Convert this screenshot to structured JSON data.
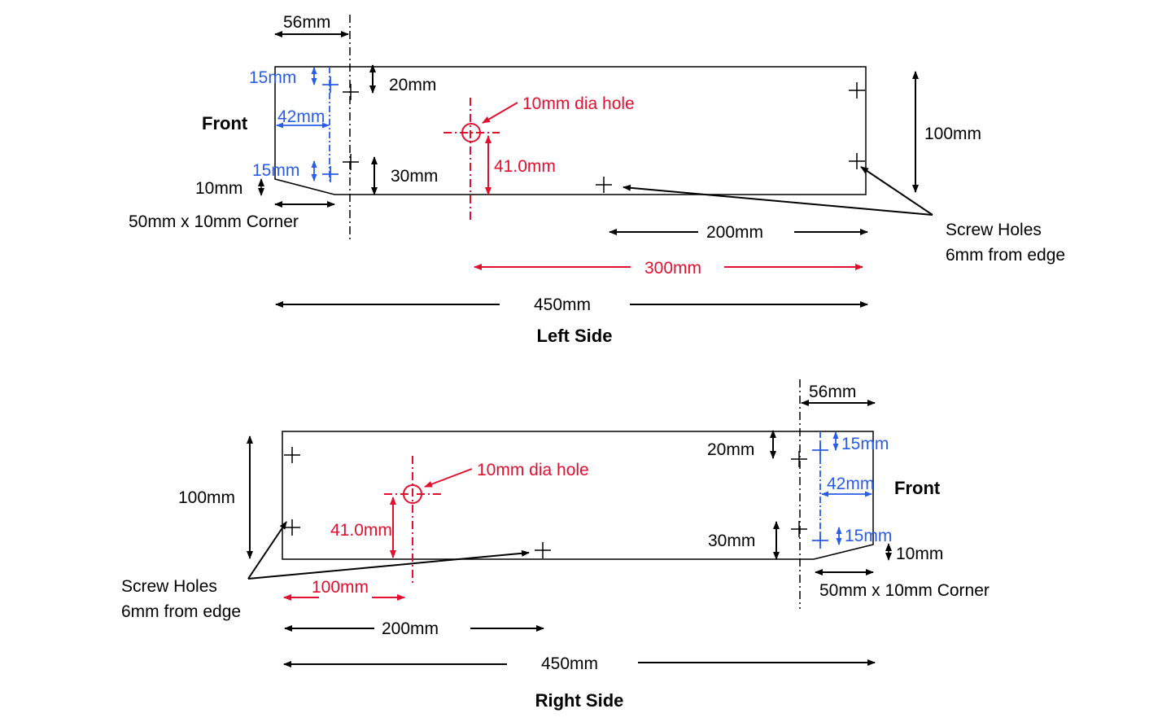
{
  "colors": {
    "black": "#000000",
    "red": "#e0102e",
    "blue": "#2a5ce8"
  },
  "left_side": {
    "title": "Left Side",
    "front_label": "Front",
    "dim_56": "56mm",
    "dim_15_top": "15mm",
    "dim_42": "42mm",
    "dim_15_bottom": "15mm",
    "dim_20": "20mm",
    "dim_30": "30mm",
    "dim_10": "10mm",
    "corner_label": "50mm x 10mm Corner",
    "hole_label": "10mm dia hole",
    "dim_41": "41.0mm",
    "dim_100": "100mm",
    "dim_200": "200mm",
    "dim_300": "300mm",
    "dim_450": "450mm",
    "screw_holes_line1": "Screw Holes",
    "screw_holes_line2": "6mm from edge"
  },
  "right_side": {
    "title": "Right Side",
    "front_label": "Front",
    "dim_56": "56mm",
    "dim_15_top": "15mm",
    "dim_42": "42mm",
    "dim_15_bottom": "15mm",
    "dim_20": "20mm",
    "dim_30": "30mm",
    "dim_10": "10mm",
    "corner_label": "50mm x 10mm Corner",
    "hole_label": "10mm dia hole",
    "dim_41": "41.0mm",
    "dim_100": "100mm",
    "dim_100_red": "100mm",
    "dim_200": "200mm",
    "dim_450": "450mm",
    "screw_holes_line1": "Screw Holes",
    "screw_holes_line2": "6mm from edge"
  }
}
